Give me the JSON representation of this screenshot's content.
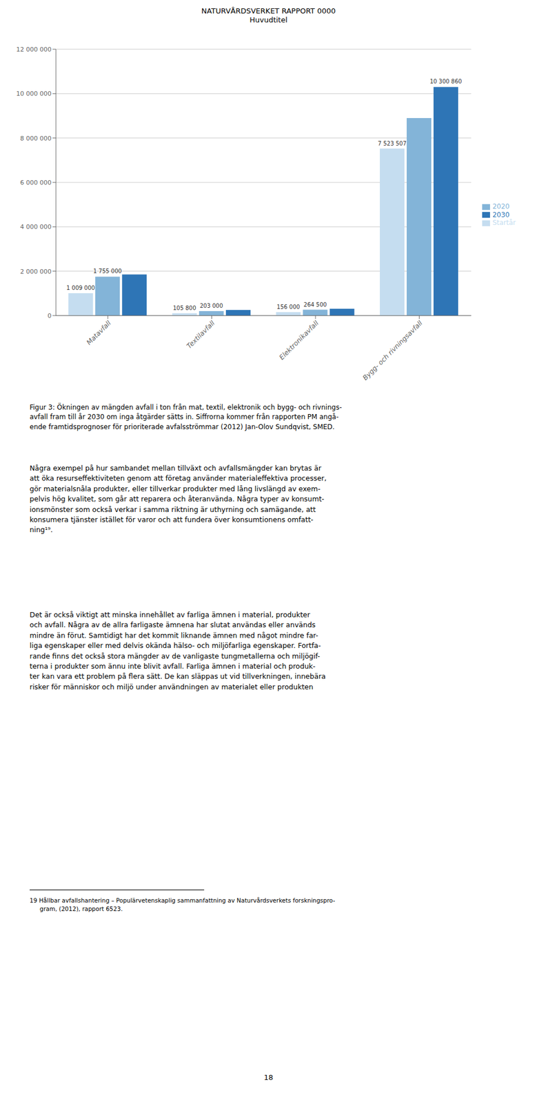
{
  "chart_data": {
    "type": "bar",
    "header": [
      "NATURVÅRDSVERKET RAPPORT 0000",
      "Huvudtitel"
    ],
    "categories": [
      "Matavfall",
      "Textilavfall",
      "Elektronikavfall",
      "Bygg- och rivningsavfall"
    ],
    "series": [
      {
        "name": "Startår",
        "color": "#C5DDF0",
        "values": [
          1009000,
          105800,
          156000,
          7523507
        ],
        "value_labels": [
          "1 009 000",
          "105 800",
          "156 000",
          "7 523 507"
        ]
      },
      {
        "name": "2020",
        "color": "#83B4D8",
        "values": [
          1755000,
          203000,
          264500,
          8900000
        ],
        "value_labels": [
          "1 755 000",
          "203 000",
          "264 500",
          null
        ]
      },
      {
        "name": "2030",
        "color": "#2E75B6",
        "values": [
          1850000,
          250000,
          310000,
          10300860
        ],
        "value_labels": [
          null,
          null,
          null,
          "10 300 860"
        ]
      }
    ],
    "ylim": [
      0,
      12000000
    ],
    "yticks": [
      0,
      {
        "value": 2000000,
        "label": "2 000 000"
      },
      {
        "value": 4000000,
        "label": "4 000 000"
      },
      {
        "value": 6000000,
        "label": "6 000 000"
      },
      {
        "value": 8000000,
        "label": "8 000 000"
      },
      {
        "value": 10000000,
        "label": "10 000 000"
      },
      {
        "value": 12000000,
        "label": "12 000 000"
      }
    ],
    "grid": true,
    "legend": "right",
    "data_labels": true,
    "caption": [
      "Figur 3: Ökningen av mängden avfall i ton från mat, textil, elektronik och bygg- och rivnings-",
      "avfall fram till år 2030 om inga åtgärder sätts in. Siffrorna kommer från rapporten PM angå-",
      "ende framtidsprognoser för prioriterade avfalsströmmar (2012) Jan-Olov Sundqvist, SMED."
    ],
    "paragraphs": [
      [
        "Några exempel på hur sambandet mellan tillväxt och avfallsmängder kan brytas är",
        "att öka resurseffektiviteten genom att företag använder materialeffektiva processer,",
        "gör materialsnåla produkter, eller tillverkar produkter med lång livslängd av exem-",
        "pelvis hög kvalitet, som går att reparera och återanvända. Några typer av konsumt-",
        "ionsmönster som också verkar i samma riktning är uthyrning och samägande, att",
        "konsumera tjänster istället för varor och att fundera över konsumtionens omfatt-",
        "ning¹⁹."
      ],
      [
        "Det är också viktigt att minska innehållet av farliga ämnen i material, produkter",
        "och avfall. Några av de allra farligaste ämnena har slutat användas eller används",
        "mindre än förut. Samtidigt har det kommit liknande ämnen med något mindre far-",
        "liga egenskaper eller med delvis okända hälso- och miljöfarliga egenskaper. Fortfa-",
        "rande finns det också stora mängder av de vanligaste tungmetallerna och miljögif-",
        "terna i produkter som ännu inte blivit avfall. Farliga ämnen i material och produk-",
        "ter kan vara ett problem på flera sätt. De kan släppas ut vid tillverkningen, innebära",
        "risker för människor och miljö under användningen av materialet eller produkten"
      ]
    ],
    "footnote": [
      "19 Hållbar avfallshantering – Populärvetenskaplig sammanfattning av Naturvårdsverkets forskningspro-",
      "gram, (2012), rapport 6523."
    ],
    "page_number": "18"
  }
}
